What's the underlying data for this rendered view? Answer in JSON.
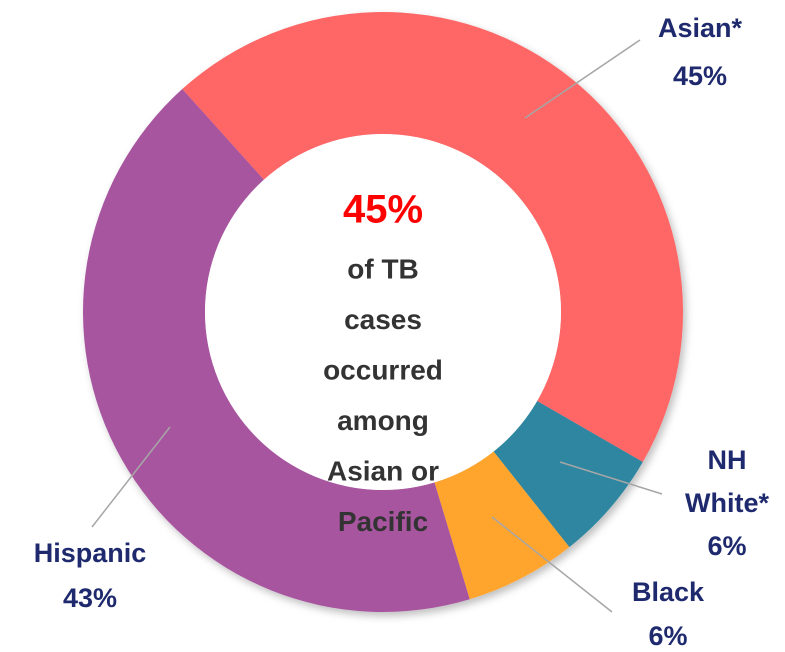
{
  "chart_data": {
    "type": "donut",
    "categories": [
      "Asian*",
      "NH White*",
      "Black",
      "Hispanic"
    ],
    "values": [
      45,
      6,
      6,
      43
    ],
    "value_labels": [
      "45%",
      "6%",
      "6%",
      "43%"
    ],
    "colors": [
      "#ff6666",
      "#2e86a0",
      "#ffa52e",
      "#a855a0"
    ],
    "center_label": "45%",
    "center_text": [
      "of TB",
      "cases",
      "occurred",
      "among",
      "Asian or",
      "Pacific"
    ]
  }
}
